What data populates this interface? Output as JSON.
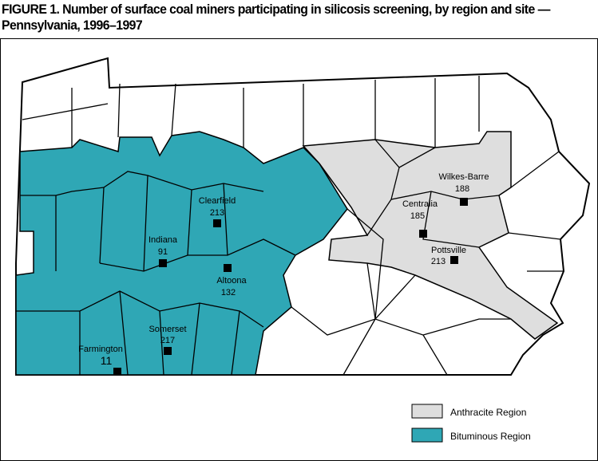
{
  "title": "FIGURE 1. Number of surface coal miners participating in silicosis screening, by region and site — Pennsylvania, 1996–1997",
  "colors": {
    "anthracite": "#dedede",
    "bituminous": "#2fa7b5",
    "other": "#ffffff",
    "border": "#000000",
    "site_marker": "#000000"
  },
  "sites": [
    {
      "name": "Clearfield",
      "count": "213",
      "region": "Bituminous"
    },
    {
      "name": "Indiana",
      "count": "91",
      "region": "Bituminous"
    },
    {
      "name": "Altoona",
      "count": "132",
      "region": "Bituminous"
    },
    {
      "name": "Somerset",
      "count": "217",
      "region": "Bituminous"
    },
    {
      "name": "Farmington",
      "count": "11",
      "region": "Bituminous"
    },
    {
      "name": "Wilkes-Barre",
      "count": "188",
      "region": "Anthracite"
    },
    {
      "name": "Centralia",
      "count": "185",
      "region": "Anthracite"
    },
    {
      "name": "Pottsville",
      "count": "213",
      "region": "Anthracite"
    }
  ],
  "legend": [
    {
      "label": "Anthracite Region",
      "color": "#dedede"
    },
    {
      "label": "Bituminous Region",
      "color": "#2fa7b5"
    }
  ]
}
